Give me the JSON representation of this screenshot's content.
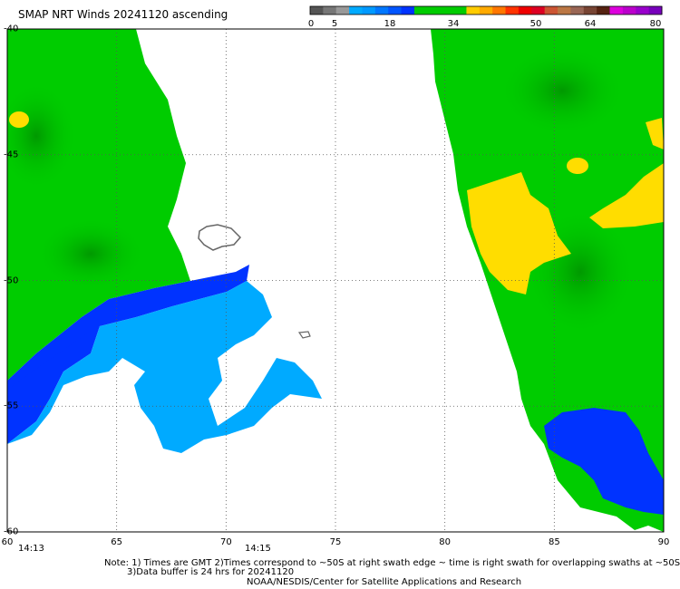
{
  "title": "SMAP NRT Winds 20241120 ascending",
  "colorbar": {
    "labels": [
      "0",
      "5",
      "18",
      "34",
      "50",
      "64",
      "80"
    ],
    "colors": [
      "#555555",
      "#777777",
      "#999999",
      "#00aaff",
      "#0099ff",
      "#0077ff",
      "#0055ff",
      "#0033ff",
      "#00cc00",
      "#00cc00",
      "#00cc00",
      "#00cc00",
      "#ffcc00",
      "#ffaa00",
      "#ff7700",
      "#ff3300",
      "#ee0000",
      "#dd0022",
      "#cc5533",
      "#bb7744",
      "#996655",
      "#774433",
      "#552211",
      "#dd00dd",
      "#bb00cc",
      "#9900cc",
      "#7700bb"
    ]
  },
  "map": {
    "lon_range": [
      60,
      90
    ],
    "lat_range": [
      -60,
      -40
    ],
    "x_ticks": [
      "60",
      "65",
      "70",
      "75",
      "80",
      "85",
      "90"
    ],
    "y_ticks": [
      "-40",
      "-45",
      "-50",
      "-55",
      "-60"
    ],
    "swath_times": [
      "14:13",
      "14:15"
    ],
    "wind_colors": {
      "green": "#00cc00",
      "blue": "#0033ff",
      "light_blue": "#00aaff",
      "yellow": "#ffdd00",
      "dark_green": "#009900"
    }
  },
  "footer": {
    "line1": "Note: 1) Times are GMT 2)Times correspond to ~50S at right swath edge ~ time is right swath for overlapping swaths at ~50S",
    "line2": "3)Data buffer is 24 hrs for 20241120",
    "line3": "NOAA/NESDIS/Center for Satellite Applications and Research"
  }
}
